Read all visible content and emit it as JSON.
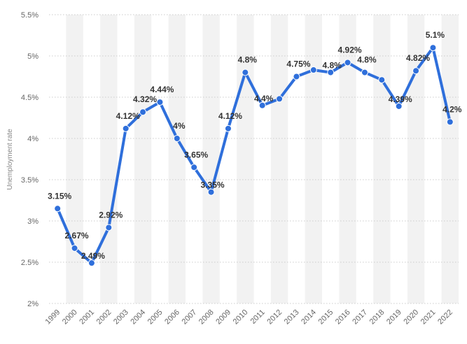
{
  "chart_data": {
    "type": "line",
    "title": "",
    "xlabel": "",
    "ylabel": "Unemployment rate",
    "categories": [
      "1999",
      "2000",
      "2001",
      "2002",
      "2003",
      "2004",
      "2005",
      "2006",
      "2007",
      "2008",
      "2009",
      "2010",
      "2011",
      "2012",
      "2013",
      "2014",
      "2015",
      "2016",
      "2017",
      "2018",
      "2019",
      "2020",
      "2021",
      "2022"
    ],
    "values": [
      3.15,
      2.67,
      2.49,
      2.92,
      4.12,
      4.32,
      4.44,
      4.0,
      3.65,
      3.35,
      4.12,
      4.8,
      4.4,
      4.48,
      4.75,
      4.83,
      4.8,
      4.92,
      4.8,
      4.71,
      4.39,
      4.82,
      5.1,
      4.2
    ],
    "data_labels": [
      "3.15%",
      "2.67%",
      "2.49%",
      "2.92%",
      "4.12%",
      "4.32%",
      "4.44%",
      "4%",
      "3.65%",
      "3.35%",
      "4.12%",
      "4.8%",
      "4.4%",
      "",
      "4.75%",
      "",
      "4.8%",
      "4.92%",
      "4.8%",
      "",
      "4.39%",
      "4.82%",
      "5.1%",
      "4.2%"
    ],
    "ylim": [
      2,
      5.5
    ],
    "yticks": [
      "2%",
      "2.5%",
      "3%",
      "3.5%",
      "4%",
      "4.5%",
      "5%",
      "5.5%"
    ],
    "grid": true,
    "line_color": "#2f6fdb",
    "band_color": "#f2f2f2"
  }
}
